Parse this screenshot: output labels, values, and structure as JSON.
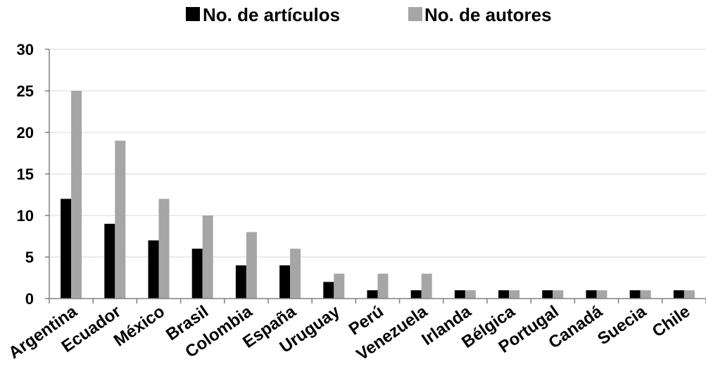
{
  "chart_data": {
    "type": "bar",
    "title": "",
    "xlabel": "",
    "ylabel": "",
    "categories": [
      "Argentina",
      "Ecuador",
      "México",
      "Brasil",
      "Colombia",
      "España",
      "Uruguay",
      "Perú",
      "Venezuela",
      "Irlanda",
      "Bélgica",
      "Portugal",
      "Canadá",
      "Suecia",
      "Chile"
    ],
    "series": [
      {
        "name": "No. de artículos",
        "color": "#000000",
        "values": [
          12,
          9,
          7,
          6,
          4,
          4,
          2,
          1,
          1,
          1,
          1,
          1,
          1,
          1,
          1
        ]
      },
      {
        "name": "No. de autores",
        "color": "#a6a6a6",
        "values": [
          25,
          19,
          12,
          10,
          8,
          6,
          3,
          3,
          3,
          1,
          1,
          1,
          1,
          1,
          1
        ]
      }
    ],
    "ylim": [
      0,
      30
    ],
    "yticks": [
      0,
      5,
      10,
      15,
      20,
      25,
      30
    ],
    "grid": true,
    "legend": "top-center"
  }
}
